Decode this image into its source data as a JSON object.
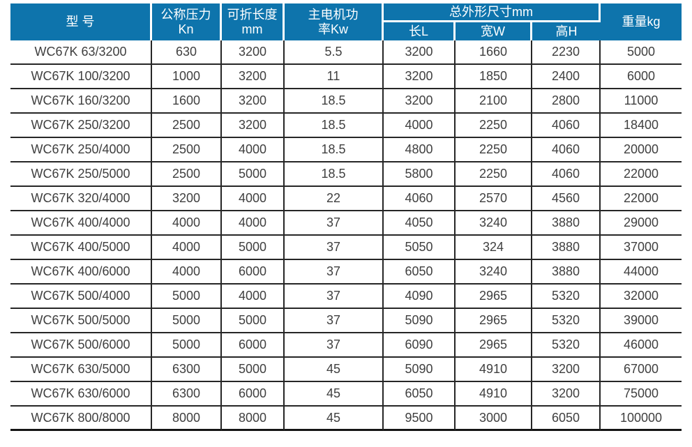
{
  "table": {
    "title_semantics": "press-brake-machine-specification-table",
    "colors": {
      "header_bg": "#0E74AC",
      "header_text": "#FFFFFF",
      "body_text": "#3F3F3F",
      "grid_line": "#262626"
    },
    "header": {
      "model": "型 号",
      "pressure_line1": "公称压力",
      "pressure_line2": "Kn",
      "fold_length_line1": "可折长度",
      "fold_length_line2": "mm",
      "power_line1": "主电机功",
      "power_line2": "率Kw",
      "dimensions_group": "总外形尺寸mm",
      "dim_length": "长L",
      "dim_width": "宽W",
      "dim_height": "高H",
      "weight": "重量kg"
    },
    "column_keys": [
      "model",
      "pressure-kn",
      "fold-length-mm",
      "motor-power-kw",
      "length-l",
      "width-w",
      "height-h",
      "weight-kg"
    ],
    "rows": [
      [
        "WC67K 63/3200",
        "630",
        "3200",
        "5.5",
        "3200",
        "1660",
        "2230",
        "5000"
      ],
      [
        "WC67K 100/3200",
        "1000",
        "3200",
        "11",
        "3200",
        "1850",
        "2400",
        "6000"
      ],
      [
        "WC67K 160/3200",
        "1600",
        "3200",
        "18.5",
        "3200",
        "2100",
        "2800",
        "11000"
      ],
      [
        "WC67K 250/3200",
        "2500",
        "3200",
        "18.5",
        "4000",
        "2250",
        "4060",
        "18400"
      ],
      [
        "WC67K 250/4000",
        "2500",
        "4000",
        "18.5",
        "4800",
        "2250",
        "4060",
        "20000"
      ],
      [
        "WC67K 250/5000",
        "2500",
        "5000",
        "18.5",
        "5800",
        "2250",
        "4060",
        "22000"
      ],
      [
        "WC67K 320/4000",
        "3200",
        "4000",
        "22",
        "4060",
        "2570",
        "4560",
        "22000"
      ],
      [
        "WC67K 400/4000",
        "4000",
        "4000",
        "37",
        "4050",
        "3240",
        "3880",
        "29000"
      ],
      [
        "WC67K 400/5000",
        "4000",
        "5000",
        "37",
        "5050",
        "324",
        "3880",
        "37000"
      ],
      [
        "WC67K 400/6000",
        "4000",
        "6000",
        "37",
        "6050",
        "3240",
        "3880",
        "44000"
      ],
      [
        "WC67K 500/4000",
        "5000",
        "4000",
        "37",
        "4090",
        "2965",
        "5320",
        "32000"
      ],
      [
        "WC67K 500/5000",
        "5000",
        "5000",
        "37",
        "5090",
        "2965",
        "5320",
        "39000"
      ],
      [
        "WC67K 500/6000",
        "5000",
        "6000",
        "37",
        "6090",
        "2965",
        "5320",
        "46000"
      ],
      [
        "WC67K 630/5000",
        "6300",
        "5000",
        "45",
        "5090",
        "4910",
        "3200",
        "67000"
      ],
      [
        "WC67K 630/6000",
        "6300",
        "6000",
        "45",
        "6050",
        "4910",
        "3200",
        "75000"
      ],
      [
        "WC67K 800/8000",
        "8000",
        "8000",
        "45",
        "9500",
        "3000",
        "6050",
        "100000"
      ]
    ]
  }
}
